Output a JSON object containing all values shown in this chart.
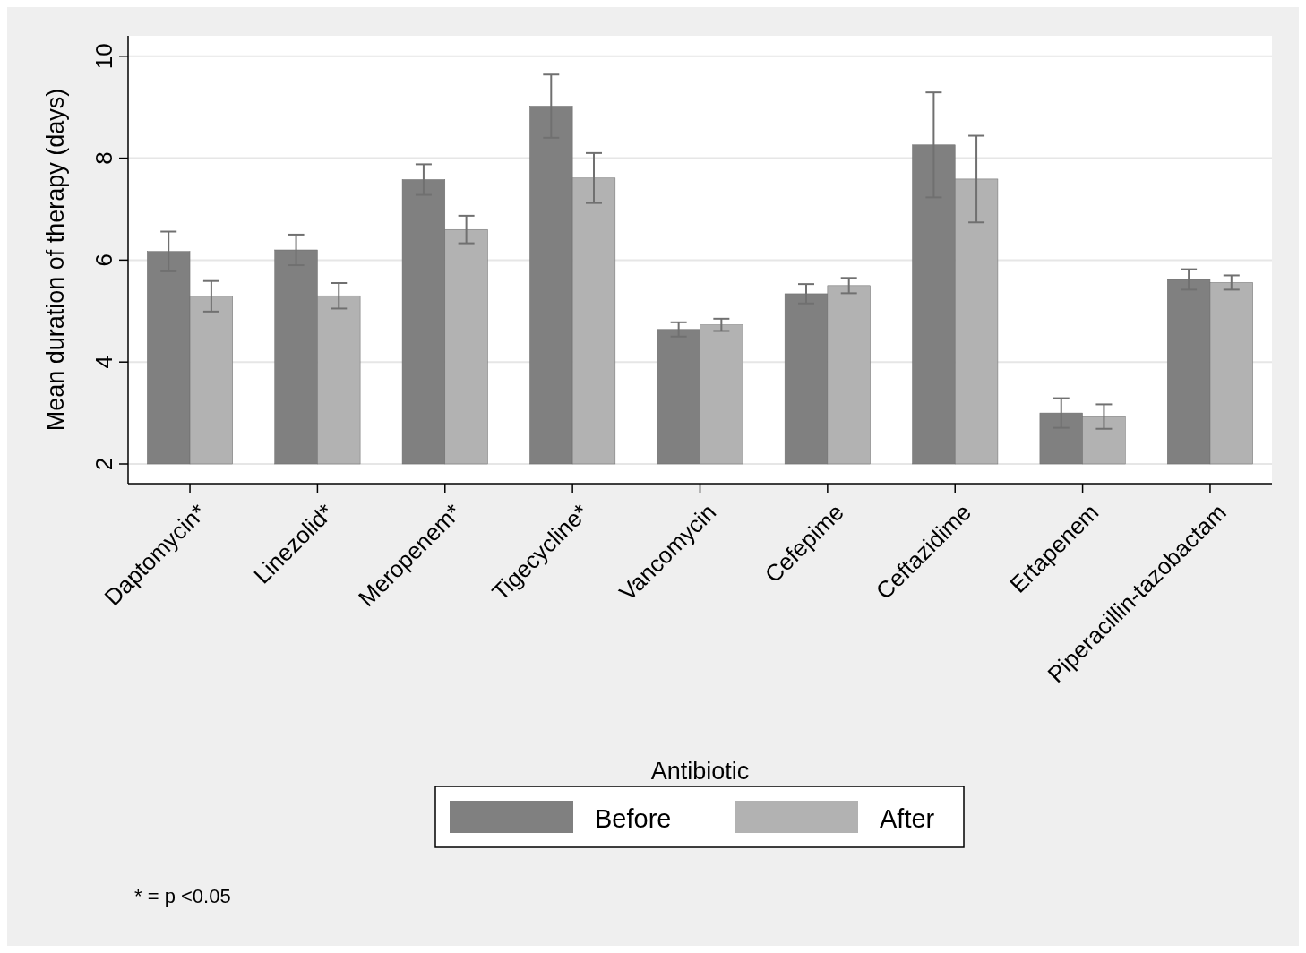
{
  "chart_data": {
    "type": "bar",
    "xlabel": "Antibiotic",
    "ylabel": "Mean duration of therapy (days)",
    "categories": [
      "Daptomycin*",
      "Linezolid*",
      "Meropenem*",
      "Tigecycline*",
      "Vancomycin",
      "Cefepime",
      "Ceftazidime",
      "Ertapenem",
      "Piperacillin-tazobactam"
    ],
    "series": [
      {
        "name": "Before",
        "color": "#808080",
        "values": [
          6.17,
          6.2,
          7.58,
          9.02,
          4.64,
          5.34,
          8.26,
          3.0,
          5.62
        ],
        "errors": [
          0.39,
          0.3,
          0.3,
          0.62,
          0.14,
          0.19,
          1.03,
          0.29,
          0.2
        ]
      },
      {
        "name": "After",
        "color": "#b2b2b2",
        "values": [
          5.29,
          5.3,
          6.6,
          7.61,
          4.73,
          5.5,
          7.59,
          2.93,
          5.56
        ],
        "errors": [
          0.3,
          0.25,
          0.27,
          0.49,
          0.12,
          0.15,
          0.85,
          0.24,
          0.14
        ]
      }
    ],
    "ylim": [
      2,
      10.4
    ],
    "yticks": [
      2,
      4,
      6,
      8,
      10
    ],
    "grid": "y",
    "legend": "bottom",
    "annotations": [
      "* = p <0.05"
    ]
  }
}
